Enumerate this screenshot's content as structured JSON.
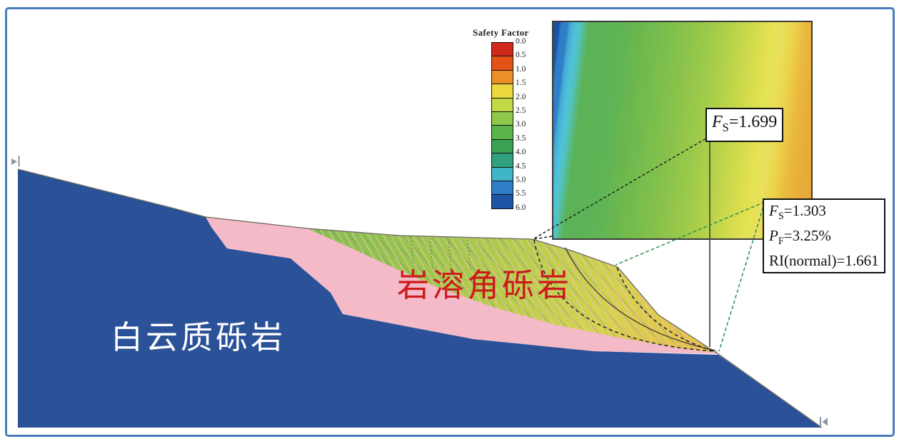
{
  "legend": {
    "title": "Safety Factor",
    "ticks": [
      "0.0",
      "0.5",
      "1.0",
      "1.5",
      "2.0",
      "2.5",
      "3.0",
      "3.5",
      "4.0",
      "4.5",
      "5.0",
      "5.5",
      "6.0"
    ],
    "band_colors": [
      "#d1281c",
      "#e35318",
      "#eb9026",
      "#ead83e",
      "#c2d844",
      "#8ec84a",
      "#5ab44a",
      "#3ba153",
      "#30a07e",
      "#40b4c8",
      "#2e7ec6",
      "#1e55a4"
    ],
    "scale_min": 0.0,
    "scale_max": 6.0,
    "scale_step": 0.5
  },
  "labels": {
    "bedrock": "白云质砾岩",
    "breccia": "岩溶角砾岩"
  },
  "annotations": {
    "box1": {
      "sym": "F",
      "sub": "S",
      "rest": "=1.699"
    },
    "box2_line1": {
      "sym": "F",
      "sub": "S",
      "rest": "=1.303"
    },
    "box2_line2": {
      "sym": "P",
      "sub": "F",
      "rest": "=3.25%"
    },
    "box2_line3": "RI(normal)=1.661"
  },
  "colors": {
    "bedrock_blue": "#2b5199",
    "pink_layer": "#f4bac8",
    "breccia_label_red": "#cc1a1a",
    "bedrock_label_white": "#ffffff",
    "frame_border_blue": "#4a7cba",
    "leader_black": "#1f1f1f",
    "leader_green": "#2f8f4f"
  }
}
